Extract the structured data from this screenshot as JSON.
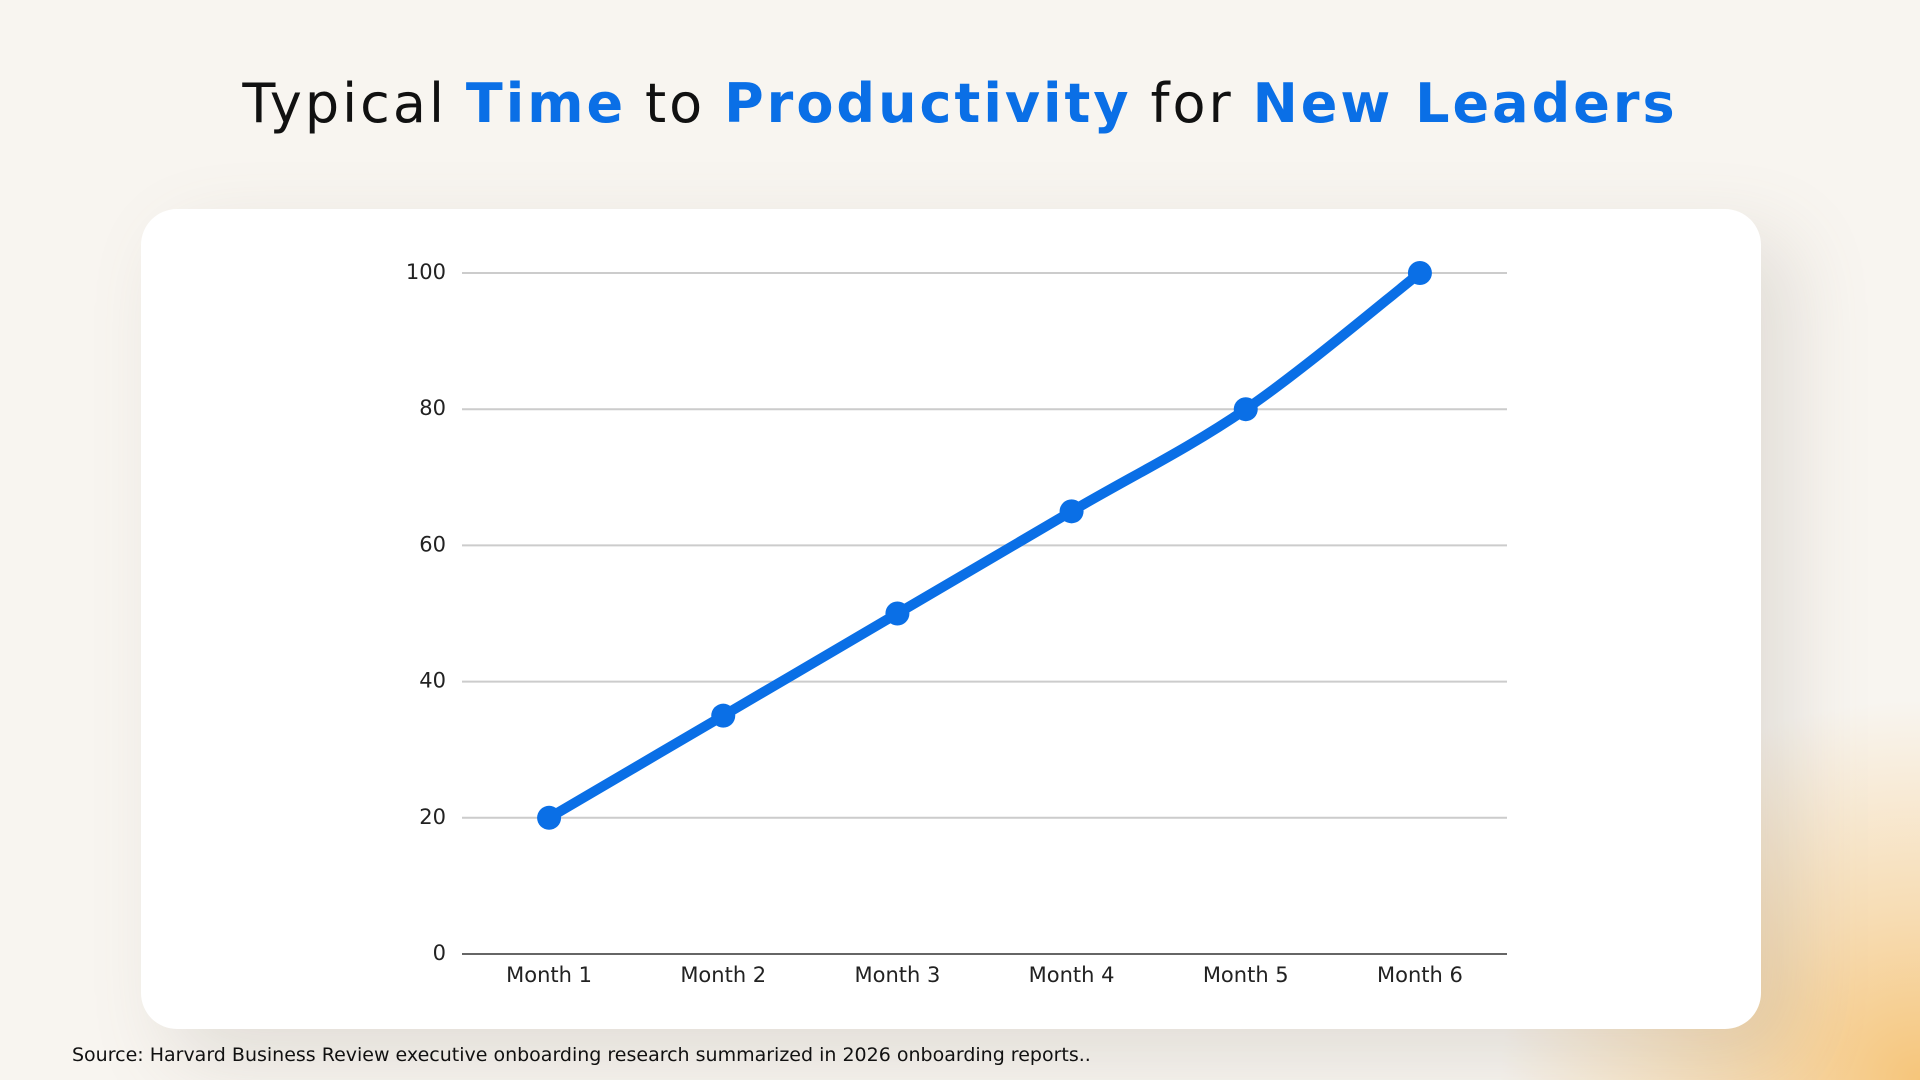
{
  "chart_data": {
    "type": "line",
    "title_parts": [
      {
        "text": "Typical",
        "emphasis": false
      },
      {
        "text": "Time",
        "emphasis": true
      },
      {
        "text": "to",
        "emphasis": false
      },
      {
        "text": "Productivity",
        "emphasis": true
      },
      {
        "text": "for",
        "emphasis": false
      },
      {
        "text": "New Leaders",
        "emphasis": true
      }
    ],
    "categories": [
      "Month 1",
      "Month 2",
      "Month 3",
      "Month 4",
      "Month 5",
      "Month 6"
    ],
    "values": [
      20,
      35,
      50,
      65,
      80,
      100
    ],
    "color": "#0a6fe6",
    "ylim": [
      0,
      100
    ],
    "yticks": [
      0,
      20,
      40,
      60,
      80,
      100
    ],
    "grid": true,
    "source": "Source: Harvard Business Review executive onboarding research summarized in 2026 onboarding reports.."
  }
}
